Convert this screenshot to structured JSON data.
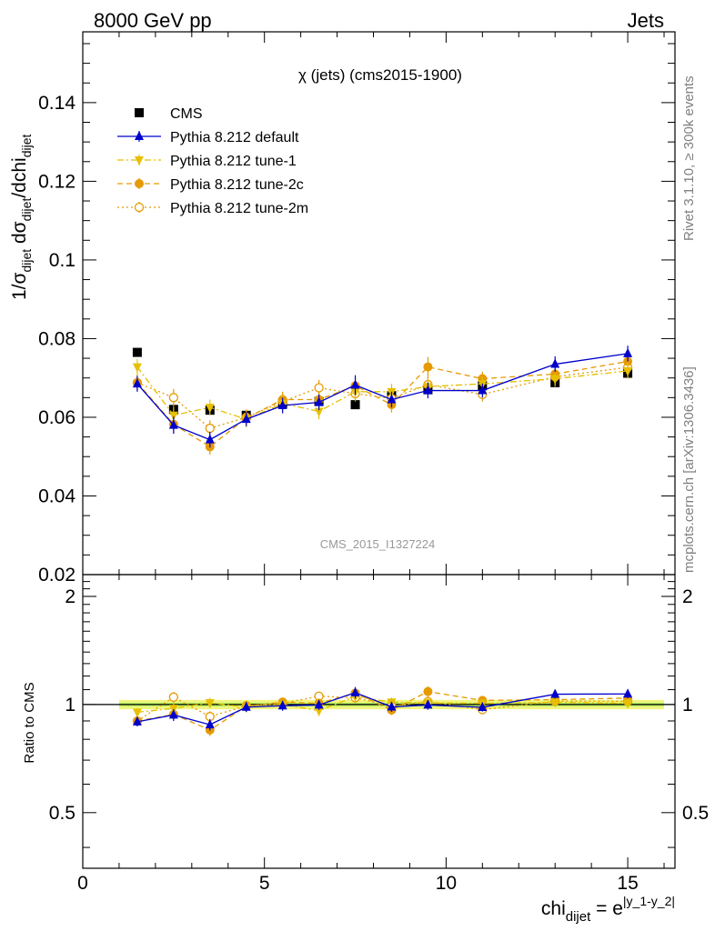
{
  "header": {
    "left": "8000 GeV pp",
    "right": "Jets"
  },
  "side_labels": {
    "rivet": "Rivet 3.1.10, ≥ 300k events",
    "mcplots": "mcplots.cern.ch [arXiv:1306.3436]"
  },
  "chart_data": {
    "type": "scatter",
    "title": "χ (jets) (cms2015-1900)",
    "analysis_label": "CMS_2015_I1327224",
    "xlabel": {
      "base": "chi",
      "sub": "dijet",
      "eq": " = e",
      "sup": "|y_1-y_2|"
    },
    "ylabel": {
      "a": "1/σ",
      "a_sub": "dijet",
      "b": " dσ",
      "b_sub": "dijet",
      "c": "/dchi",
      "c_sub": "dijet"
    },
    "ratio_ylabel": "Ratio to CMS",
    "xlim": [
      0,
      16.3
    ],
    "ylim": [
      0.02,
      0.158
    ],
    "ratio_ylim": [
      0.35,
      2.3
    ],
    "log_ratio_axis": true,
    "x_ticks": [
      0,
      5,
      10,
      15
    ],
    "x_tick_labels": [
      "0",
      "5",
      "10",
      "15"
    ],
    "y_ticks": [
      0.02,
      0.04,
      0.06,
      0.08,
      0.1,
      0.12,
      0.14
    ],
    "y_tick_labels": [
      "0.02",
      "0.04",
      "0.06",
      "0.08",
      "0.1",
      "0.12",
      "0.14"
    ],
    "ratio_ticks": [
      0.5,
      1,
      2
    ],
    "ratio_tick_labels": [
      "0.5",
      "1",
      "2"
    ],
    "legend_position": "top-left",
    "x": [
      1.5,
      2.5,
      3.5,
      4.5,
      5.5,
      6.5,
      7.5,
      8.5,
      9.5,
      11,
      13,
      15
    ],
    "series": [
      {
        "name": "CMS",
        "color": "#000000",
        "marker": "square",
        "line": "none",
        "values": [
          0.0765,
          0.062,
          0.0618,
          0.0605,
          0.0635,
          0.064,
          0.0632,
          0.0655,
          0.067,
          0.068,
          0.0688,
          0.0712
        ],
        "errors": [
          0.0005,
          0.0005,
          0.0005,
          0.0005,
          0.0005,
          0.0005,
          0.0005,
          0.0005,
          0.0005,
          0.0005,
          0.0005,
          0.0005
        ]
      },
      {
        "name": "Pythia 8.212 default",
        "color": "#0000cc",
        "marker": "triangle-up",
        "line": "solid",
        "values": [
          0.0685,
          0.058,
          0.0543,
          0.0595,
          0.063,
          0.0638,
          0.0682,
          0.0645,
          0.0668,
          0.0668,
          0.0735,
          0.0762
        ],
        "errors": [
          0.002,
          0.0022,
          0.002,
          0.0018,
          0.002,
          0.002,
          0.0025,
          0.002,
          0.002,
          0.0018,
          0.002,
          0.002
        ]
      },
      {
        "name": "Pythia 8.212 tune-1",
        "color": "#e6c000",
        "marker": "triangle-down",
        "line": "dashdot",
        "values": [
          0.0728,
          0.0605,
          0.0625,
          0.0595,
          0.0635,
          0.0615,
          0.0665,
          0.0665,
          0.0678,
          0.0685,
          0.0698,
          0.0718
        ],
        "errors": [
          0.002,
          0.0022,
          0.002,
          0.002,
          0.002,
          0.002,
          0.002,
          0.002,
          0.002,
          0.0018,
          0.002,
          0.002
        ]
      },
      {
        "name": "Pythia 8.212 tune-2c",
        "color": "#e69a00",
        "marker": "circle-filled",
        "line": "dashed",
        "values": [
          0.0688,
          0.0582,
          0.0525,
          0.0598,
          0.0645,
          0.0645,
          0.068,
          0.0632,
          0.0728,
          0.0698,
          0.071,
          0.0742
        ],
        "errors": [
          0.002,
          0.0022,
          0.002,
          0.002,
          0.002,
          0.002,
          0.002,
          0.002,
          0.0025,
          0.0018,
          0.002,
          0.002
        ]
      },
      {
        "name": "Pythia 8.212 tune-2m",
        "color": "#e69a00",
        "marker": "circle-open",
        "line": "dotted",
        "values": [
          0.0688,
          0.065,
          0.0572,
          0.06,
          0.064,
          0.0675,
          0.066,
          0.0648,
          0.0683,
          0.0658,
          0.0703,
          0.0727
        ],
        "errors": [
          0.002,
          0.0022,
          0.002,
          0.002,
          0.002,
          0.002,
          0.002,
          0.002,
          0.002,
          0.0018,
          0.002,
          0.002
        ]
      }
    ],
    "ratio_band": {
      "half_width": 0.03,
      "inner_half_width": 0.012,
      "outer_color": "#f0f580",
      "inner_color": "#b8f260"
    }
  }
}
